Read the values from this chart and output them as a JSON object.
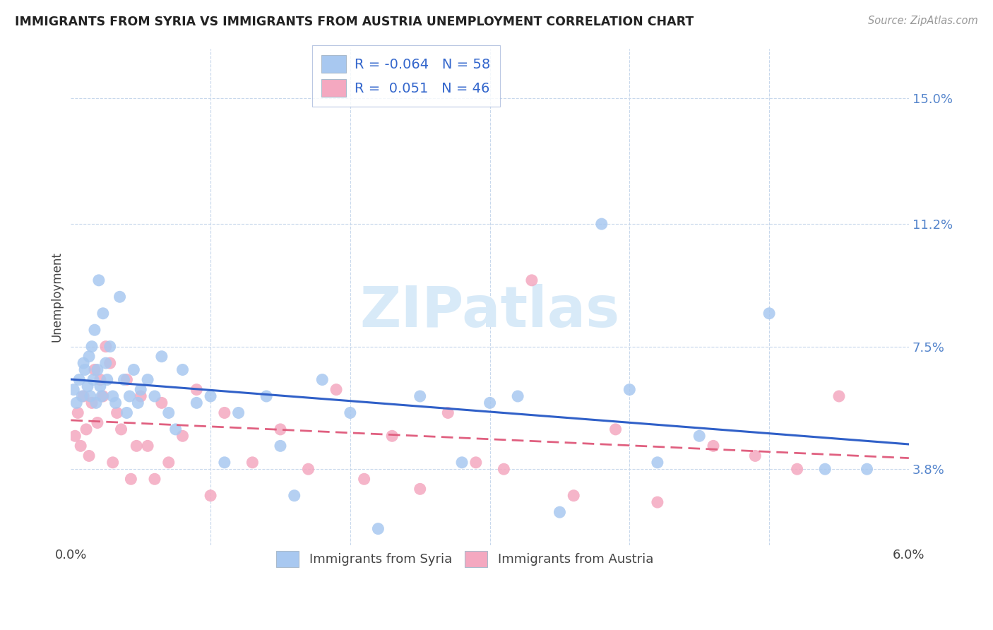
{
  "title": "IMMIGRANTS FROM SYRIA VS IMMIGRANTS FROM AUSTRIA UNEMPLOYMENT CORRELATION CHART",
  "source": "Source: ZipAtlas.com",
  "ylabel": "Unemployment",
  "ytick_labels": [
    "15.0%",
    "11.2%",
    "7.5%",
    "3.8%"
  ],
  "ytick_values": [
    0.15,
    0.112,
    0.075,
    0.038
  ],
  "xlim": [
    0.0,
    0.06
  ],
  "ylim": [
    0.015,
    0.165
  ],
  "syria_color": "#a8c8f0",
  "austria_color": "#f4a8c0",
  "syria_line_color": "#3060c8",
  "austria_line_color": "#e06080",
  "background_color": "#ffffff",
  "watermark_text": "ZIPatlas",
  "watermark_color": "#d8eaf8",
  "legend1_label": "R = -0.064   N = 58",
  "legend2_label": "R =  0.051   N = 46",
  "bottom_legend1": "Immigrants from Syria",
  "bottom_legend2": "Immigrants from Austria",
  "syria_x": [
    0.0002,
    0.0004,
    0.0006,
    0.0008,
    0.0009,
    0.001,
    0.0012,
    0.0013,
    0.0014,
    0.0015,
    0.0016,
    0.0017,
    0.0018,
    0.0019,
    0.002,
    0.0021,
    0.0022,
    0.0023,
    0.0025,
    0.0026,
    0.0028,
    0.003,
    0.0032,
    0.0035,
    0.0038,
    0.004,
    0.0042,
    0.0045,
    0.0048,
    0.005,
    0.0055,
    0.006,
    0.0065,
    0.007,
    0.0075,
    0.008,
    0.009,
    0.01,
    0.011,
    0.012,
    0.014,
    0.015,
    0.016,
    0.018,
    0.02,
    0.022,
    0.025,
    0.028,
    0.03,
    0.032,
    0.035,
    0.038,
    0.04,
    0.042,
    0.045,
    0.05,
    0.054,
    0.057
  ],
  "syria_y": [
    0.062,
    0.058,
    0.065,
    0.06,
    0.07,
    0.068,
    0.063,
    0.072,
    0.06,
    0.075,
    0.065,
    0.08,
    0.058,
    0.068,
    0.095,
    0.063,
    0.06,
    0.085,
    0.07,
    0.065,
    0.075,
    0.06,
    0.058,
    0.09,
    0.065,
    0.055,
    0.06,
    0.068,
    0.058,
    0.062,
    0.065,
    0.06,
    0.072,
    0.055,
    0.05,
    0.068,
    0.058,
    0.06,
    0.04,
    0.055,
    0.06,
    0.045,
    0.03,
    0.065,
    0.055,
    0.02,
    0.06,
    0.04,
    0.058,
    0.06,
    0.025,
    0.112,
    0.062,
    0.04,
    0.048,
    0.085,
    0.038,
    0.038
  ],
  "austria_x": [
    0.0003,
    0.0005,
    0.0007,
    0.0009,
    0.0011,
    0.0013,
    0.0015,
    0.0017,
    0.0019,
    0.0021,
    0.0023,
    0.0025,
    0.0028,
    0.003,
    0.0033,
    0.0036,
    0.004,
    0.0043,
    0.0047,
    0.005,
    0.0055,
    0.006,
    0.0065,
    0.007,
    0.008,
    0.009,
    0.01,
    0.011,
    0.013,
    0.015,
    0.017,
    0.019,
    0.021,
    0.023,
    0.025,
    0.027,
    0.029,
    0.031,
    0.033,
    0.036,
    0.039,
    0.042,
    0.046,
    0.049,
    0.052,
    0.055
  ],
  "austria_y": [
    0.048,
    0.055,
    0.045,
    0.06,
    0.05,
    0.042,
    0.058,
    0.068,
    0.052,
    0.065,
    0.06,
    0.075,
    0.07,
    0.04,
    0.055,
    0.05,
    0.065,
    0.035,
    0.045,
    0.06,
    0.045,
    0.035,
    0.058,
    0.04,
    0.048,
    0.062,
    0.03,
    0.055,
    0.04,
    0.05,
    0.038,
    0.062,
    0.035,
    0.048,
    0.032,
    0.055,
    0.04,
    0.038,
    0.095,
    0.03,
    0.05,
    0.028,
    0.045,
    0.042,
    0.038,
    0.06
  ]
}
